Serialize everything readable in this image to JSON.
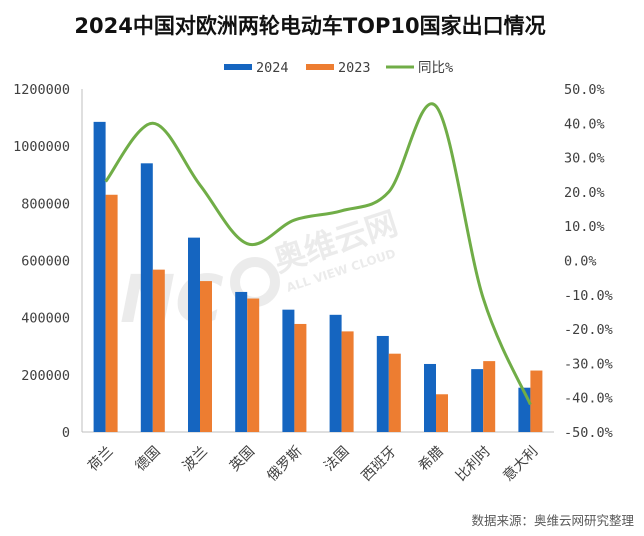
{
  "chart_data": {
    "type": "bar",
    "title": "2024中国对欧洲两轮电动车TOP10国家出口情况",
    "categories": [
      "荷兰",
      "德国",
      "波兰",
      "英国",
      "俄罗斯",
      "法国",
      "西班牙",
      "希腊",
      "比利时",
      "意大利"
    ],
    "series": [
      {
        "name": "2024",
        "type": "bar",
        "axis": "left",
        "color": "#1565C0",
        "values": [
          1085000,
          940000,
          680000,
          490000,
          428000,
          410000,
          336000,
          238000,
          220000,
          155000
        ]
      },
      {
        "name": "2023",
        "type": "bar",
        "axis": "left",
        "color": "#ED7D31",
        "values": [
          830000,
          568000,
          528000,
          467000,
          378000,
          352000,
          274000,
          132000,
          248000,
          215000
        ]
      },
      {
        "name": "同比%",
        "type": "line",
        "axis": "right",
        "color": "#70AD47",
        "values": [
          23.0,
          40.0,
          22.0,
          4.9,
          11.8,
          14.5,
          20.0,
          45.0,
          -11.0,
          -42.0
        ]
      }
    ],
    "ylim": [
      0,
      1200000
    ],
    "yticks": [
      "0",
      "200000",
      "400000",
      "600000",
      "800000",
      "1000000",
      "1200000"
    ],
    "y2lim": [
      -50,
      50
    ],
    "y2ticks": [
      "-50.0%",
      "-40.0%",
      "-30.0%",
      "-20.0%",
      "-10.0%",
      "0.0%",
      "10.0%",
      "20.0%",
      "30.0%",
      "40.0%",
      "50.0%"
    ],
    "legend_position": "top",
    "grid": false
  },
  "watermark": {
    "brand": "奥维云网",
    "tagline": "ALL VIEW CLOUD"
  },
  "source": "数据来源：奥维云网研究整理"
}
